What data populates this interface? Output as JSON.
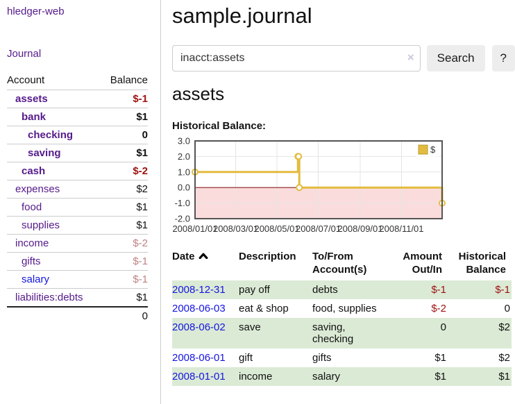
{
  "sidebar": {
    "app_title": "hledger-web",
    "nav": [
      {
        "label": "Journal"
      }
    ],
    "accounts_table": {
      "headers": {
        "account": "Account",
        "balance": "Balance"
      },
      "rows": [
        {
          "name": "assets",
          "indent": 1,
          "bold": true,
          "balance": "$-1",
          "balance_tone": "neg-strong"
        },
        {
          "name": "bank",
          "indent": 2,
          "bold": true,
          "balance": "$1",
          "balance_tone": "normal"
        },
        {
          "name": "checking",
          "indent": 3,
          "bold": true,
          "balance": "0",
          "balance_tone": "normal"
        },
        {
          "name": "saving",
          "indent": 3,
          "bold": true,
          "balance": "$1",
          "balance_tone": "normal"
        },
        {
          "name": "cash",
          "indent": 2,
          "bold": true,
          "balance": "$-2",
          "balance_tone": "neg-strong"
        },
        {
          "name": "expenses",
          "indent": 1,
          "bold": false,
          "balance": "$2",
          "balance_tone": "normal"
        },
        {
          "name": "food",
          "indent": 2,
          "bold": false,
          "balance": "$1",
          "balance_tone": "normal"
        },
        {
          "name": "supplies",
          "indent": 2,
          "bold": false,
          "balance": "$1",
          "balance_tone": "normal"
        },
        {
          "name": "income",
          "indent": 1,
          "bold": false,
          "balance": "$-2",
          "balance_tone": "neg-soft"
        },
        {
          "name": "gifts",
          "indent": 2,
          "bold": false,
          "balance": "$-1",
          "balance_tone": "neg-soft"
        },
        {
          "name": "salary",
          "indent": 2,
          "bold": false,
          "link_tone": "blue",
          "balance": "$-1",
          "balance_tone": "neg-soft"
        },
        {
          "name": "liabilities:debts",
          "indent": 1,
          "bold": false,
          "balance": "$1",
          "balance_tone": "normal"
        }
      ],
      "total": "0"
    }
  },
  "header": {
    "title": "sample.journal"
  },
  "search": {
    "value": "inacct:assets",
    "clear_icon": "×",
    "button": "Search",
    "help_button": "?"
  },
  "account_page": {
    "title": "assets",
    "chart_label": "Historical Balance:"
  },
  "chart_data": {
    "type": "line",
    "step": true,
    "title": "Historical Balance:",
    "series": [
      {
        "name": "$",
        "points": [
          [
            "2008-01-01",
            1
          ],
          [
            "2008-06-01",
            2
          ],
          [
            "2008-06-02",
            2
          ],
          [
            "2008-06-03",
            0
          ],
          [
            "2008-12-31",
            -1
          ]
        ]
      }
    ],
    "x_ticks": [
      "2008/01/01",
      "2008/03/01",
      "2008/05/01",
      "2008/07/01",
      "2008/09/01",
      "2008/11/01"
    ],
    "y_ticks": [
      "3.0",
      "2.0",
      "1.0",
      "0.0",
      "-1.0",
      "-2.0"
    ],
    "xlim": [
      "2008-01-01",
      "2008-12-31"
    ],
    "ylim": [
      -2,
      3
    ],
    "legend_position": "top-right",
    "grid": true,
    "line_color": "#e2bc3e",
    "negative_region_color": "#fbdcdc",
    "zero_line_color": "#8b1d1d"
  },
  "transactions": {
    "columns": [
      {
        "line1": "Date",
        "line2": "",
        "sorted": "asc"
      },
      {
        "line1": "Description",
        "line2": ""
      },
      {
        "line1": "To/From",
        "line2": "Account(s)"
      },
      {
        "line1": "Amount",
        "line2": "Out/In"
      },
      {
        "line1": "Historical",
        "line2": "Balance"
      }
    ],
    "rows": [
      {
        "date": "2008-12-31",
        "description": "pay off",
        "accounts": "debts",
        "amount": "$-1",
        "amount_tone": "neg",
        "balance": "$-1",
        "balance_tone": "neg"
      },
      {
        "date": "2008-06-03",
        "description": "eat & shop",
        "accounts": "food, supplies",
        "amount": "$-2",
        "amount_tone": "neg",
        "balance": "0",
        "balance_tone": "normal"
      },
      {
        "date": "2008-06-02",
        "description": "save",
        "accounts": "saving, checking",
        "amount": "0",
        "amount_tone": "normal",
        "balance": "$2",
        "balance_tone": "normal"
      },
      {
        "date": "2008-06-01",
        "description": "gift",
        "accounts": "gifts",
        "amount": "$1",
        "amount_tone": "normal",
        "balance": "$2",
        "balance_tone": "normal"
      },
      {
        "date": "2008-01-01",
        "description": "income",
        "accounts": "salary",
        "amount": "$1",
        "amount_tone": "normal",
        "balance": "$1",
        "balance_tone": "normal"
      }
    ]
  },
  "colors": {
    "link_purple": "#551a8b",
    "link_blue": "#1515e0",
    "negative_strong": "#9e1111",
    "negative_soft": "#c08181",
    "row_stripe_green": "#dbead5",
    "chart_line_gold": "#e2bc3e",
    "chart_negative_pink": "#fbdcdc",
    "chart_zero_red": "#8b1d1d"
  }
}
